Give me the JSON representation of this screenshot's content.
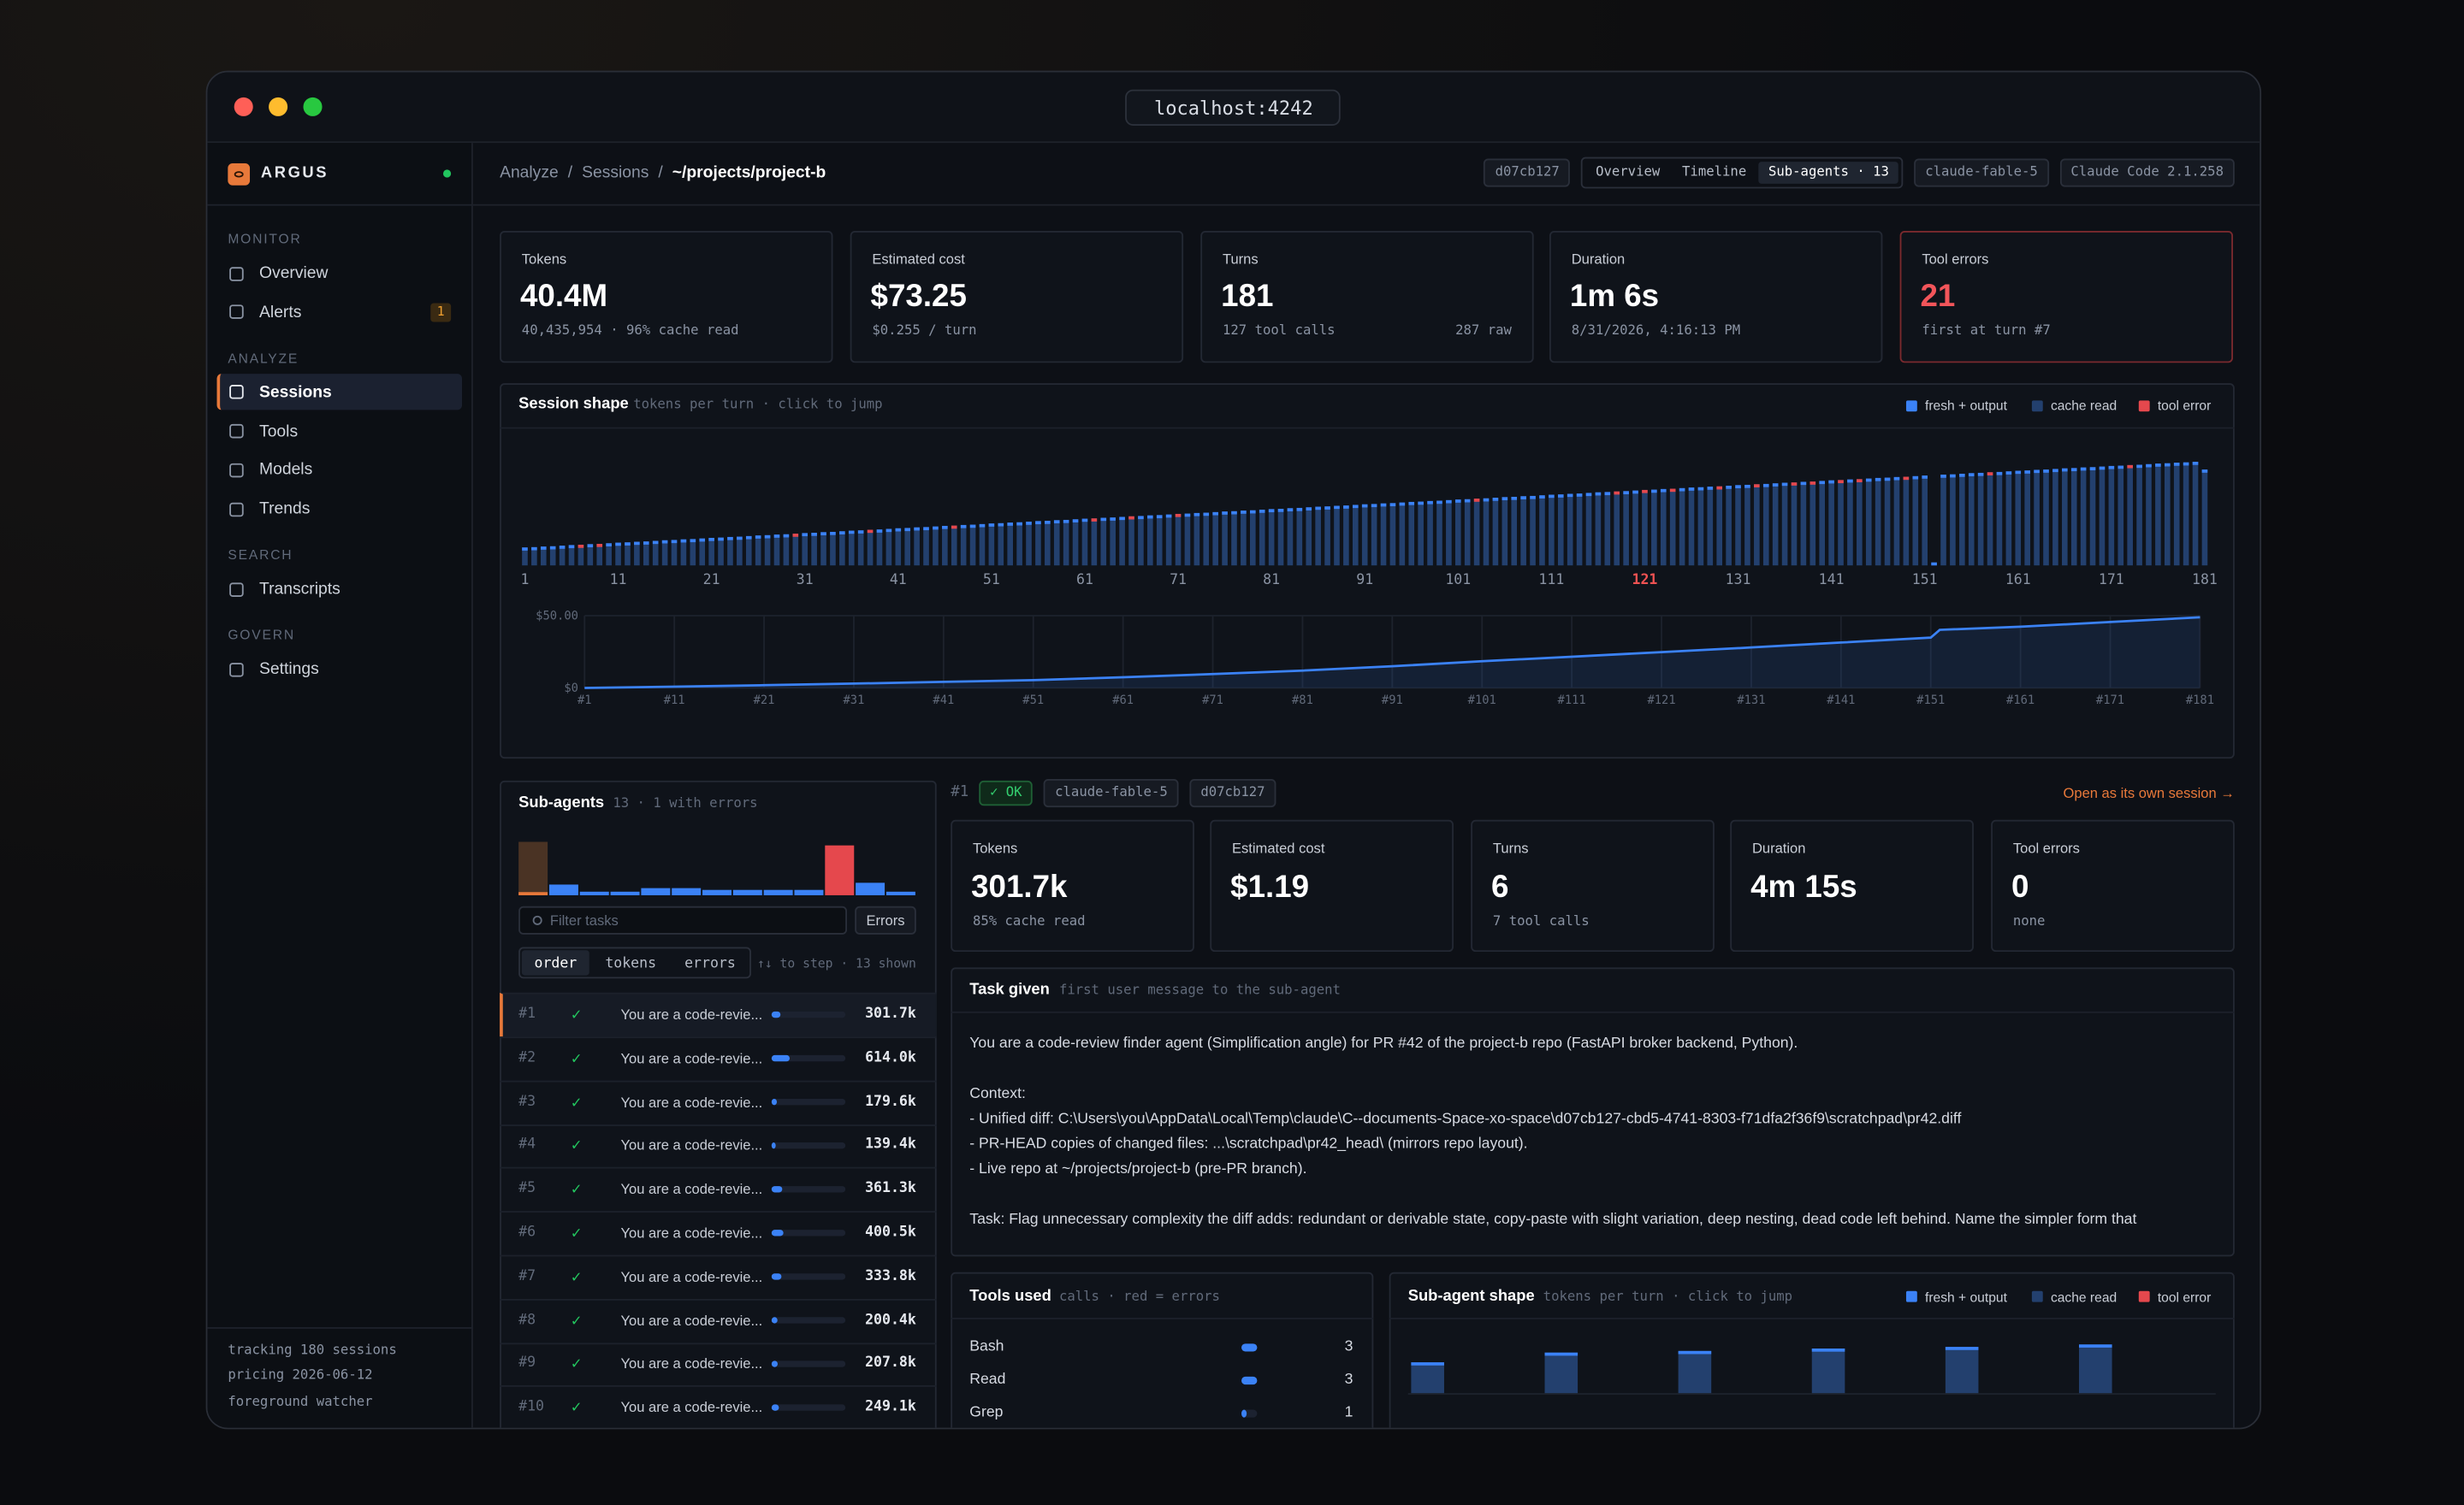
{
  "window": {
    "url": "localhost:4242"
  },
  "sidebar": {
    "brand": "ARGUS",
    "sections": [
      {
        "title": "MONITOR",
        "items": [
          {
            "label": "Overview"
          },
          {
            "label": "Alerts",
            "badge": 1
          }
        ]
      },
      {
        "title": "ANALYZE",
        "items": [
          {
            "label": "Sessions",
            "active": true
          },
          {
            "label": "Tools"
          },
          {
            "label": "Models"
          },
          {
            "label": "Trends"
          }
        ]
      },
      {
        "title": "SEARCH",
        "items": [
          {
            "label": "Transcripts"
          }
        ]
      },
      {
        "title": "GOVERN",
        "items": [
          {
            "label": "Settings"
          }
        ]
      }
    ],
    "footer": [
      "tracking 180 sessions",
      "pricing 2026-06-12",
      "foreground watcher"
    ]
  },
  "topbar": {
    "breadcrumb": [
      "Analyze",
      "Sessions",
      "~/projects/project-b"
    ],
    "separator": "/",
    "session_id": "d07cb127",
    "tabs": [
      {
        "label": "Overview"
      },
      {
        "label": "Timeline"
      },
      {
        "label": "Sub-agents · 13",
        "active": true
      }
    ],
    "model": "claude-fable-5",
    "client": "Claude Code 2.1.258"
  },
  "stats": [
    {
      "label": "Tokens",
      "value": "40.4M",
      "sub": "40,435,954 · 96% cache read"
    },
    {
      "label": "Estimated cost",
      "value": "$73.25",
      "sub": "$0.255 / turn"
    },
    {
      "label": "Turns",
      "value": 181,
      "sub": "127 tool calls",
      "extra": "287 raw"
    },
    {
      "label": "Duration",
      "value": "1m 6s",
      "sub": "8/31/2026, 4:16:13 PM"
    },
    {
      "label": "Tool errors",
      "value": 21,
      "sub": "first at turn #7",
      "alert": true
    }
  ],
  "session_shape": {
    "type": "bar",
    "title": "Session shape",
    "subtitle": "tokens per turn · click to jump",
    "legend": [
      {
        "name": "fresh + output",
        "color": "#3b82f6"
      },
      {
        "name": "cache read",
        "color": "#23406e"
      },
      {
        "name": "tool error",
        "color": "#e5484d"
      }
    ],
    "values": [
      60,
      61,
      63,
      64,
      66,
      68,
      69,
      71,
      72,
      74,
      76,
      77,
      79,
      80,
      82,
      84,
      85,
      87,
      88,
      90,
      92,
      93,
      95,
      96,
      98,
      100,
      101,
      103,
      104,
      106,
      108,
      109,
      111,
      112,
      114,
      116,
      117,
      119,
      120,
      122,
      124,
      125,
      127,
      128,
      130,
      132,
      133,
      135,
      136,
      138,
      140,
      141,
      143,
      144,
      146,
      148,
      149,
      151,
      152,
      154,
      156,
      157,
      159,
      160,
      162,
      164,
      165,
      167,
      168,
      170,
      172,
      173,
      175,
      176,
      178,
      180,
      181,
      183,
      184,
      186,
      188,
      189,
      191,
      192,
      194,
      196,
      197,
      199,
      200,
      202,
      204,
      205,
      207,
      208,
      210,
      212,
      213,
      215,
      216,
      218,
      220,
      221,
      223,
      224,
      226,
      228,
      229,
      231,
      232,
      234,
      236,
      237,
      239,
      240,
      242,
      244,
      245,
      247,
      248,
      250,
      252,
      253,
      255,
      256,
      258,
      260,
      261,
      263,
      264,
      266,
      268,
      269,
      271,
      272,
      274,
      276,
      277,
      279,
      280,
      282,
      284,
      285,
      287,
      288,
      290,
      292,
      293,
      295,
      296,
      298,
      300,
      10,
      303,
      304,
      306,
      308,
      309,
      311,
      312,
      314,
      316,
      317,
      319,
      320,
      322,
      324,
      325,
      327,
      328,
      330,
      332,
      333,
      335,
      336,
      338,
      340,
      341,
      343,
      344,
      346,
      320
    ],
    "error_turns": [
      7,
      9,
      30,
      38,
      47,
      62,
      66,
      71,
      103,
      118,
      121,
      124,
      129,
      133,
      137,
      139,
      142,
      144,
      149,
      158,
      173
    ],
    "xticks": [
      1,
      11,
      21,
      31,
      41,
      51,
      61,
      71,
      81,
      91,
      101,
      111,
      121,
      131,
      141,
      151,
      161,
      171,
      181
    ],
    "highlight": 121
  },
  "cost_chart": {
    "type": "line",
    "color": "#3b82f6",
    "x": [
      1,
      11,
      21,
      31,
      41,
      51,
      61,
      71,
      81,
      91,
      101,
      111,
      121,
      131,
      141,
      151,
      152,
      161,
      171,
      181
    ],
    "values": [
      0,
      0.9,
      1.9,
      3,
      4.2,
      5.4,
      7.4,
      9.6,
      12,
      15,
      18.5,
      21.6,
      24.8,
      28,
      31.4,
      34.8,
      40.2,
      42.4,
      45.6,
      48.9
    ],
    "xlim": [
      1,
      181
    ],
    "ylim": [
      0,
      50
    ],
    "yticks": [
      {
        "value": 0,
        "label": "$0"
      },
      {
        "value": 50,
        "label": "$50.00"
      }
    ],
    "xticks": [
      {
        "value": 1,
        "label": "#1"
      },
      {
        "value": 11,
        "label": "#11"
      },
      {
        "value": 21,
        "label": "#21"
      },
      {
        "value": 31,
        "label": "#31"
      },
      {
        "value": 41,
        "label": "#41"
      },
      {
        "value": 51,
        "label": "#51"
      },
      {
        "value": 61,
        "label": "#61"
      },
      {
        "value": 71,
        "label": "#71"
      },
      {
        "value": 81,
        "label": "#81"
      },
      {
        "value": 91,
        "label": "#91"
      },
      {
        "value": 101,
        "label": "#101"
      },
      {
        "value": 111,
        "label": "#111"
      },
      {
        "value": 121,
        "label": "#121"
      },
      {
        "value": 131,
        "label": "#131"
      },
      {
        "value": 141,
        "label": "#141"
      },
      {
        "value": 151,
        "label": "#151"
      },
      {
        "value": 161,
        "label": "#161"
      },
      {
        "value": 171,
        "label": "#171"
      },
      {
        "value": 181,
        "label": "#181"
      }
    ]
  },
  "sub_agents": {
    "title": "Sub-agents",
    "summary": "13 · 1 with errors",
    "activity": {
      "values": [
        30,
        6,
        2,
        2,
        4,
        4,
        3,
        3,
        3,
        3,
        28,
        7,
        2
      ],
      "colors": [
        "#4a3324",
        "#3b82f6",
        "#3b82f6",
        "#3b82f6",
        "#3b82f6",
        "#3b82f6",
        "#3b82f6",
        "#3b82f6",
        "#3b82f6",
        "#3b82f6",
        "#e5484d",
        "#3b82f6",
        "#3b82f6"
      ]
    },
    "filter_placeholder": "Filter tasks",
    "errors_button": "Errors",
    "sort": [
      {
        "label": "order",
        "active": true
      },
      {
        "label": "tokens"
      },
      {
        "label": "errors"
      }
    ],
    "hint": "↑↓ to step · 13 shown",
    "xlim": [
      0,
      2500000
    ],
    "rows": [
      {
        "id": "#1",
        "status": "✓",
        "task": "You are a code-revie...",
        "tokens": 301700,
        "tokens_label": "301.7k"
      },
      {
        "id": "#2",
        "status": "✓",
        "task": "You are a code-revie...",
        "tokens": 614000,
        "tokens_label": "614.0k"
      },
      {
        "id": "#3",
        "status": "✓",
        "task": "You are a code-revie...",
        "tokens": 179600,
        "tokens_label": "179.6k"
      },
      {
        "id": "#4",
        "status": "✓",
        "task": "You are a code-revie...",
        "tokens": 139400,
        "tokens_label": "139.4k"
      },
      {
        "id": "#5",
        "status": "✓",
        "task": "You are a code-revie...",
        "tokens": 361300,
        "tokens_label": "361.3k"
      },
      {
        "id": "#6",
        "status": "✓",
        "task": "You are a code-revie...",
        "tokens": 400500,
        "tokens_label": "400.5k"
      },
      {
        "id": "#7",
        "status": "✓",
        "task": "You are a code-revie...",
        "tokens": 333800,
        "tokens_label": "333.8k"
      },
      {
        "id": "#8",
        "status": "✓",
        "task": "You are a code-revie...",
        "tokens": 200400,
        "tokens_label": "200.4k"
      },
      {
        "id": "#9",
        "status": "✓",
        "task": "You are a code-revie...",
        "tokens": 207800,
        "tokens_label": "207.8k"
      },
      {
        "id": "#10",
        "status": "✓",
        "task": "You are a code-revie...",
        "tokens": 249100,
        "tokens_label": "249.1k"
      }
    ]
  },
  "detail": {
    "id": "#1",
    "status_icon": "✓",
    "status": "OK",
    "model": "claude-fable-5",
    "session": "d07cb127",
    "open_link": "Open as its own session →",
    "stats": [
      {
        "label": "Tokens",
        "value": "301.7k",
        "sub": "85% cache read"
      },
      {
        "label": "Estimated cost",
        "value": "$1.19"
      },
      {
        "label": "Turns",
        "value": 6,
        "sub": "7 tool calls"
      },
      {
        "label": "Duration",
        "value": "4m 15s"
      },
      {
        "label": "Tool errors",
        "value": 0,
        "sub": "none"
      }
    ],
    "task": {
      "title": "Task given",
      "subtitle": "first user message to the sub-agent",
      "paragraphs": [
        [
          "You are a code-review finder agent (Simplification angle) for PR #42 of the project-b repo (FastAPI broker backend, Python)."
        ],
        [
          "Context:",
          "- Unified diff: C:\\Users\\you\\AppData\\Local\\Temp\\claude\\C--documents-Space-xo-space\\d07cb127-cbd5-4741-8303-f71dfa2f36f9\\scratchpad\\pr42.diff",
          "- PR-HEAD copies of changed files: ...\\scratchpad\\pr42_head\\ (mirrors repo layout).",
          "- Live repo at ~/projects/project-b (pre-PR branch)."
        ],
        [
          "Task: Flag unnecessary complexity the diff adds: redundant or derivable state, copy-paste with slight variation, deep nesting, dead code left behind. Name the simpler form that"
        ]
      ]
    },
    "tools": {
      "title": "Tools used",
      "subtitle": "calls · red = errors",
      "rows": [
        {
          "name": "Bash",
          "calls": 3
        },
        {
          "name": "Read",
          "calls": 3
        },
        {
          "name": "Grep",
          "calls": 1
        }
      ]
    },
    "shape": {
      "type": "bar",
      "title": "Sub-agent shape",
      "subtitle": "tokens per turn · click to jump",
      "legend": [
        {
          "name": "fresh + output",
          "color": "#3b82f6"
        },
        {
          "name": "cache read",
          "color": "#23406e"
        },
        {
          "name": "tool error",
          "color": "#e5484d"
        }
      ],
      "values": [
        38,
        50,
        52,
        55,
        57,
        60
      ]
    }
  }
}
